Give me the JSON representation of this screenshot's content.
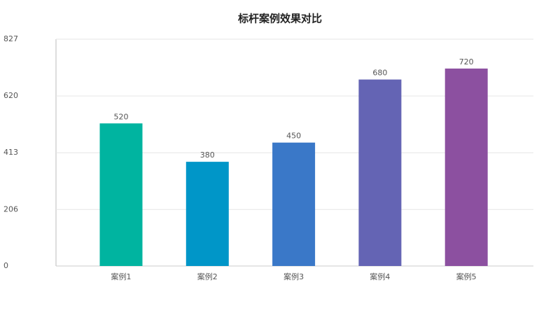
{
  "chart_data": {
    "type": "bar",
    "title": "标杆案例效果对比",
    "categories": [
      "案例1",
      "案例2",
      "案例3",
      "案例4",
      "案例5"
    ],
    "values": [
      520,
      380,
      450,
      680,
      720
    ],
    "colors": [
      "#00b4a0",
      "#0096c8",
      "#3a78c8",
      "#6464b4",
      "#8c50a0"
    ],
    "ylim": [
      0,
      827
    ],
    "yticks": [
      0,
      206,
      413,
      620,
      827
    ],
    "grid": true
  }
}
